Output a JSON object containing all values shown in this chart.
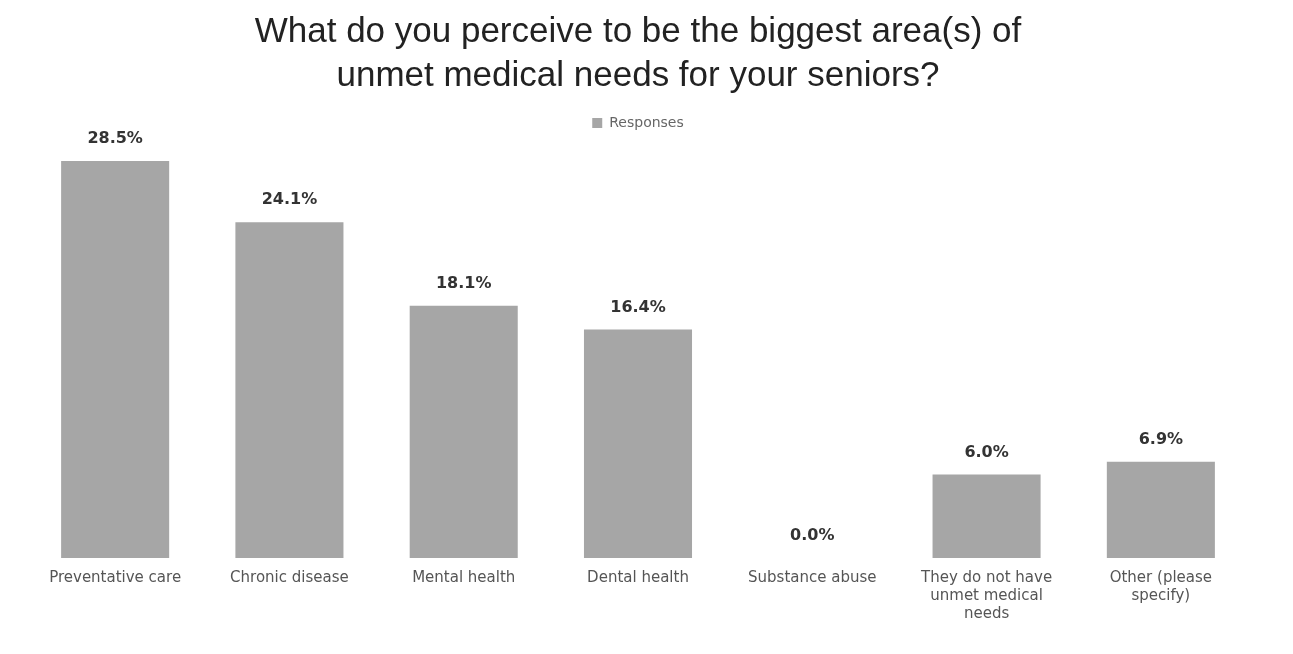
{
  "chart_data": {
    "type": "bar",
    "title": "What do you perceive to be the biggest area(s) of unmet medical needs for your seniors?",
    "categories": [
      "Preventative care",
      "Chronic disease",
      "Mental health",
      "Dental health",
      "Substance abuse",
      "They do not have unmet medical needs",
      "Other (please specify)"
    ],
    "series": [
      {
        "name": "Responses",
        "color": "#a6a6a6",
        "values": [
          28.5,
          24.1,
          18.1,
          16.4,
          0.0,
          6.0,
          6.9
        ],
        "value_labels": [
          "28.5%",
          "24.1%",
          "18.1%",
          "16.4%",
          "0.0%",
          "6.0%",
          "6.9%"
        ]
      }
    ],
    "legend": "top",
    "grid": false
  }
}
